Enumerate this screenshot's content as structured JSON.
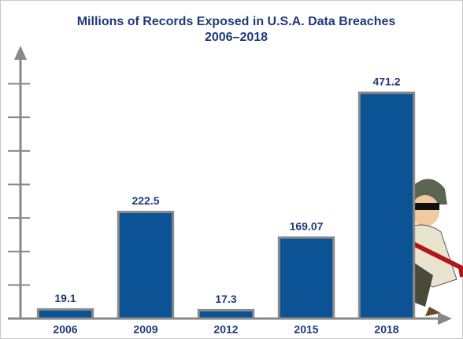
{
  "chart_data": {
    "type": "bar",
    "title": "Millions of Records Exposed in U.S.A. Data Breaches",
    "subtitle": "2006–2018",
    "categories": [
      "2006",
      "2009",
      "2012",
      "2015",
      "2018"
    ],
    "values": [
      19.1,
      222.5,
      17.3,
      169.07,
      471.2
    ],
    "color": "#0b5394",
    "ylim": [
      0,
      550
    ],
    "yticks": [
      70,
      140,
      210,
      280,
      350,
      420,
      490
    ]
  }
}
